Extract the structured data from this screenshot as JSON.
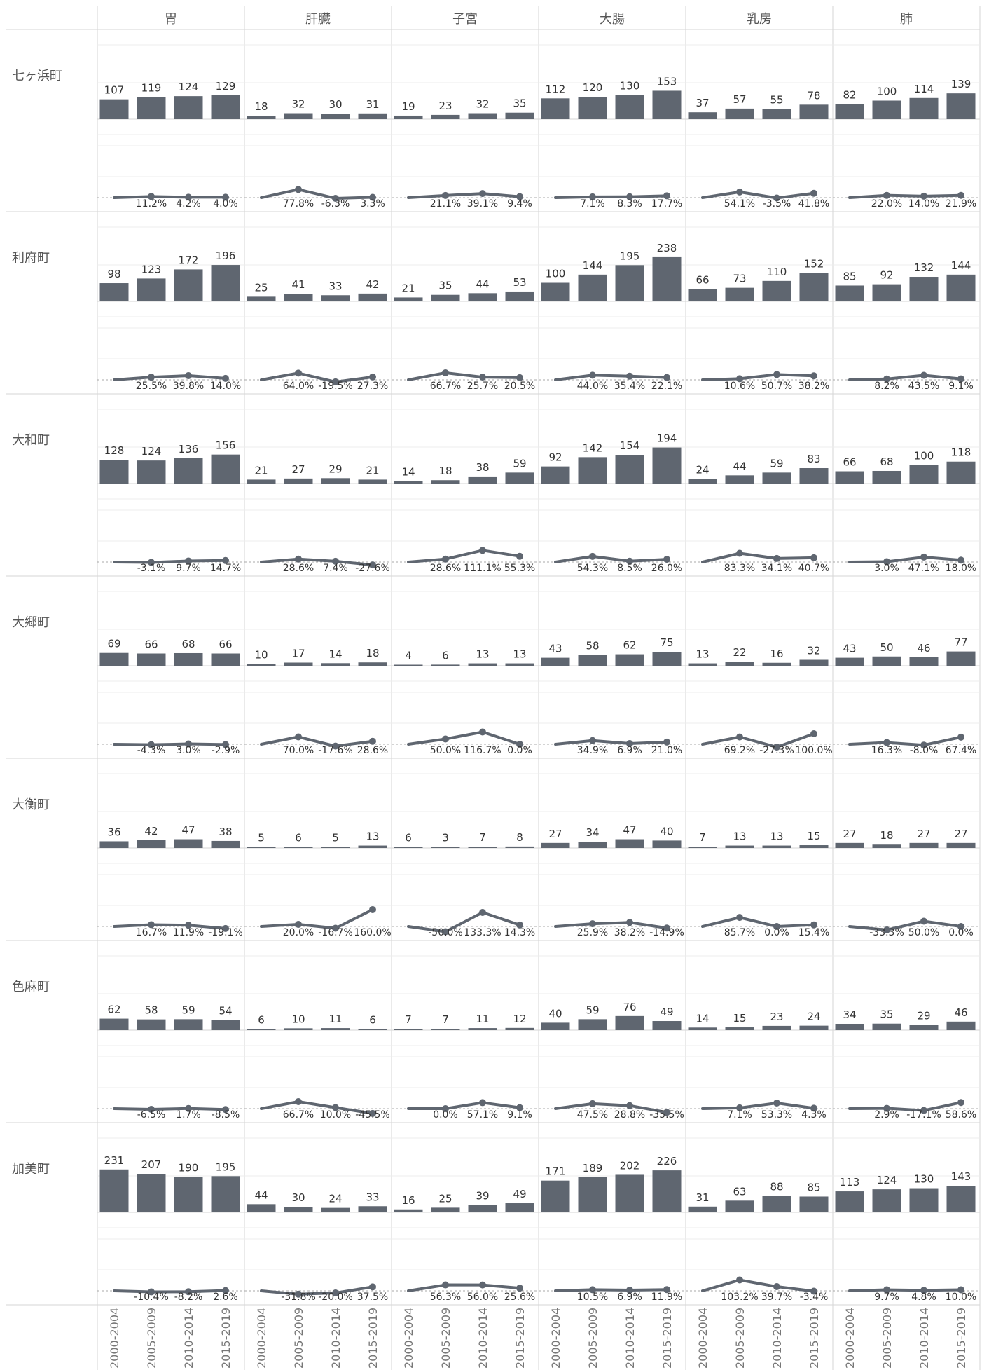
{
  "chart_data": {
    "type": "bar",
    "columns": [
      "胃",
      "肝臓",
      "子宮",
      "大腸",
      "乳房",
      "肺"
    ],
    "rows": [
      "七ヶ浜町",
      "利府町",
      "大和町",
      "大郷町",
      "大衡町",
      "色麻町",
      "加美町"
    ],
    "periods": [
      "2000-2004",
      "2005-2009",
      "2010-2014",
      "2015-2019"
    ],
    "series_note": "counts per period (bars) and percent change from previous period (line)",
    "counts": [
      [
        [
          107,
          119,
          124,
          129
        ],
        [
          18,
          32,
          30,
          31
        ],
        [
          19,
          23,
          32,
          35
        ],
        [
          112,
          120,
          130,
          153
        ],
        [
          37,
          57,
          55,
          78
        ],
        [
          82,
          100,
          114,
          139
        ]
      ],
      [
        [
          98,
          123,
          172,
          196
        ],
        [
          25,
          41,
          33,
          42
        ],
        [
          21,
          35,
          44,
          53
        ],
        [
          100,
          144,
          195,
          238
        ],
        [
          66,
          73,
          110,
          152
        ],
        [
          85,
          92,
          132,
          144
        ]
      ],
      [
        [
          128,
          124,
          136,
          156
        ],
        [
          21,
          27,
          29,
          21
        ],
        [
          14,
          18,
          38,
          59
        ],
        [
          92,
          142,
          154,
          194
        ],
        [
          24,
          44,
          59,
          83
        ],
        [
          66,
          68,
          100,
          118
        ]
      ],
      [
        [
          69,
          66,
          68,
          66
        ],
        [
          10,
          17,
          14,
          18
        ],
        [
          4,
          6,
          13,
          13
        ],
        [
          43,
          58,
          62,
          75
        ],
        [
          13,
          22,
          16,
          32
        ],
        [
          43,
          50,
          46,
          77
        ]
      ],
      [
        [
          36,
          42,
          47,
          38
        ],
        [
          5,
          6,
          5,
          13
        ],
        [
          6,
          3,
          7,
          8
        ],
        [
          27,
          34,
          47,
          40
        ],
        [
          7,
          13,
          13,
          15
        ],
        [
          27,
          18,
          27,
          27
        ]
      ],
      [
        [
          62,
          58,
          59,
          54
        ],
        [
          6,
          10,
          11,
          6
        ],
        [
          7,
          7,
          11,
          12
        ],
        [
          40,
          59,
          76,
          49
        ],
        [
          14,
          15,
          23,
          24
        ],
        [
          34,
          35,
          29,
          46
        ]
      ],
      [
        [
          231,
          207,
          190,
          195
        ],
        [
          44,
          30,
          24,
          33
        ],
        [
          16,
          25,
          39,
          49
        ],
        [
          171,
          189,
          202,
          226
        ],
        [
          31,
          63,
          88,
          85
        ],
        [
          113,
          124,
          130,
          143
        ]
      ]
    ],
    "pct_change": [
      [
        [
          11.2,
          4.2,
          4.0
        ],
        [
          77.8,
          -6.3,
          3.3
        ],
        [
          21.1,
          39.1,
          9.4
        ],
        [
          7.1,
          8.3,
          17.7
        ],
        [
          54.1,
          -3.5,
          41.8
        ],
        [
          22.0,
          14.0,
          21.9
        ]
      ],
      [
        [
          25.5,
          39.8,
          14.0
        ],
        [
          64.0,
          -19.5,
          27.3
        ],
        [
          66.7,
          25.7,
          20.5
        ],
        [
          44.0,
          35.4,
          22.1
        ],
        [
          10.6,
          50.7,
          38.2
        ],
        [
          8.2,
          43.5,
          9.1
        ]
      ],
      [
        [
          -3.1,
          9.7,
          14.7
        ],
        [
          28.6,
          7.4,
          -27.6
        ],
        [
          28.6,
          111.1,
          55.3
        ],
        [
          54.3,
          8.5,
          26.0
        ],
        [
          83.3,
          34.1,
          40.7
        ],
        [
          3.0,
          47.1,
          18.0
        ]
      ],
      [
        [
          -4.3,
          3.0,
          -2.9
        ],
        [
          70.0,
          -17.6,
          28.6
        ],
        [
          50.0,
          116.7,
          0.0
        ],
        [
          34.9,
          6.9,
          21.0
        ],
        [
          69.2,
          -27.3,
          100.0
        ],
        [
          16.3,
          -8.0,
          67.4
        ]
      ],
      [
        [
          16.7,
          11.9,
          -19.1
        ],
        [
          20.0,
          -16.7,
          160.0
        ],
        [
          -50.0,
          133.3,
          14.3
        ],
        [
          25.9,
          38.2,
          -14.9
        ],
        [
          85.7,
          0.0,
          15.4
        ],
        [
          -33.3,
          50.0,
          0.0
        ]
      ],
      [
        [
          -6.5,
          1.7,
          -8.5
        ],
        [
          66.7,
          10.0,
          -45.5
        ],
        [
          0.0,
          57.1,
          9.1
        ],
        [
          47.5,
          28.8,
          -35.5
        ],
        [
          7.1,
          53.3,
          4.3
        ],
        [
          2.9,
          -17.1,
          58.6
        ]
      ],
      [
        [
          -10.4,
          -8.2,
          2.6
        ],
        [
          -31.8,
          -20.0,
          37.5
        ],
        [
          56.3,
          56.0,
          25.6
        ],
        [
          10.5,
          6.9,
          11.9
        ],
        [
          103.2,
          39.7,
          -3.4
        ],
        [
          9.7,
          4.8,
          10.0
        ]
      ]
    ],
    "count_axis_max": 400,
    "pct_axis": [
      -100,
      600
    ],
    "colors": {
      "mark": "#5f6670",
      "grid": "#ececec",
      "divider": "#d6d6d6",
      "zero_line": "#a8a8a8",
      "text": "#333333",
      "header_text": "#555555",
      "period_text": "#777777"
    }
  }
}
